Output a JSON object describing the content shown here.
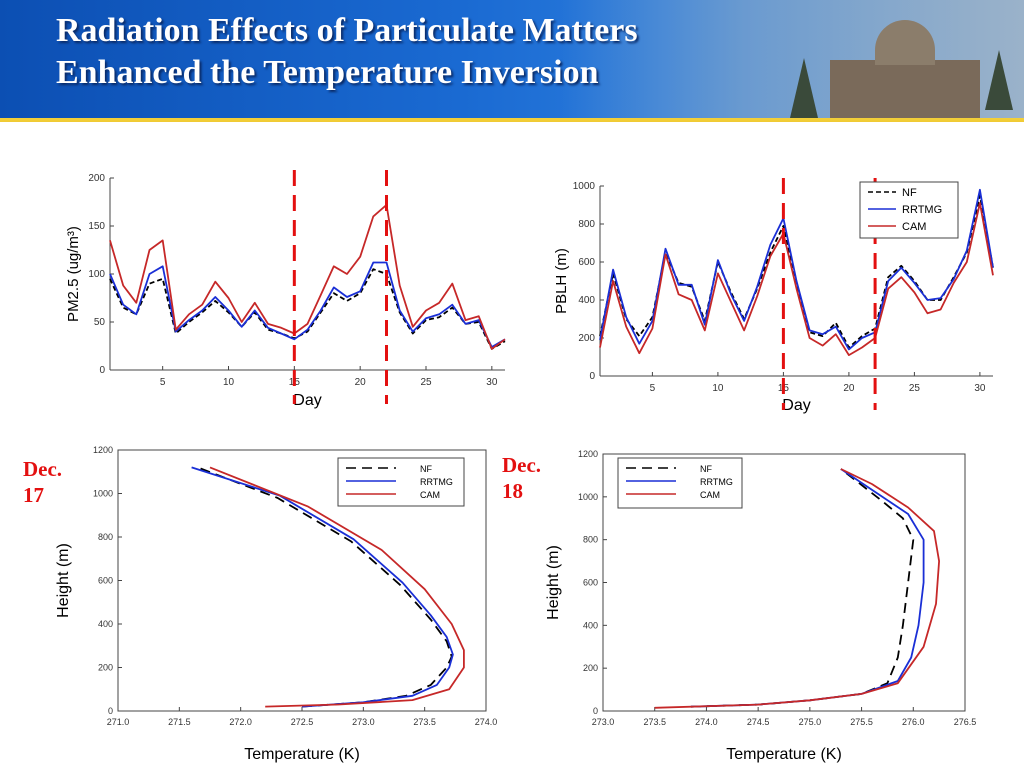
{
  "slide": {
    "title": "Radiation Effects of Particulate Matters\nEnhanced the Temperature Inversion",
    "label_dec17": "Dec.\n17",
    "label_dec18": "Dec.\n18"
  },
  "colors": {
    "NF": "#000000",
    "RRTMG": "#1a2fd6",
    "CAM": "#c62828",
    "marker": "#e31010",
    "title_bg": "#1a5fc7",
    "stripe": "#f2c51e"
  },
  "chart_data": [
    {
      "id": "pm25",
      "type": "line",
      "xlabel": "Day",
      "ylabel": "PM2.5 (ug/m³)",
      "xlim": [
        1,
        31
      ],
      "ylim": [
        0,
        200
      ],
      "xticks": [
        5,
        10,
        15,
        20,
        25,
        30
      ],
      "yticks": [
        0,
        50,
        100,
        150,
        200
      ],
      "markers": [
        15,
        22
      ],
      "x": [
        1,
        2,
        3,
        4,
        5,
        6,
        7,
        8,
        9,
        10,
        11,
        12,
        13,
        14,
        15,
        16,
        17,
        18,
        19,
        20,
        21,
        22,
        23,
        24,
        25,
        26,
        27,
        28,
        29,
        30,
        31
      ],
      "series": [
        {
          "name": "NF",
          "values": [
            95,
            65,
            58,
            90,
            95,
            38,
            50,
            60,
            72,
            60,
            45,
            60,
            42,
            38,
            33,
            40,
            60,
            80,
            72,
            80,
            105,
            100,
            60,
            38,
            52,
            55,
            65,
            48,
            50,
            22,
            30
          ]
        },
        {
          "name": "RRTMG",
          "values": [
            100,
            68,
            58,
            100,
            108,
            40,
            52,
            62,
            76,
            62,
            45,
            62,
            44,
            38,
            32,
            42,
            62,
            86,
            76,
            82,
            112,
            112,
            62,
            40,
            54,
            58,
            68,
            48,
            52,
            24,
            32
          ]
        },
        {
          "name": "CAM",
          "values": [
            135,
            88,
            70,
            125,
            135,
            42,
            58,
            68,
            92,
            75,
            50,
            70,
            48,
            44,
            38,
            48,
            78,
            108,
            100,
            118,
            160,
            172,
            88,
            45,
            62,
            70,
            90,
            52,
            56,
            22,
            32
          ]
        }
      ]
    },
    {
      "id": "pblh",
      "type": "line",
      "xlabel": "Day",
      "ylabel": "PBLH (m)",
      "legend": [
        "NF",
        "RRTMG",
        "CAM"
      ],
      "legend_position": "top-right",
      "xlim": [
        1,
        31
      ],
      "ylim": [
        0,
        1000
      ],
      "xticks": [
        5,
        10,
        15,
        20,
        25,
        30
      ],
      "yticks": [
        0,
        200,
        400,
        600,
        800,
        1000
      ],
      "markers": [
        15,
        22
      ],
      "x": [
        1,
        2,
        3,
        4,
        5,
        6,
        7,
        8,
        9,
        10,
        11,
        12,
        13,
        14,
        15,
        16,
        17,
        18,
        19,
        20,
        21,
        22,
        23,
        24,
        25,
        26,
        27,
        28,
        29,
        30,
        31
      ],
      "series": [
        {
          "name": "NF",
          "values": [
            210,
            540,
            300,
            210,
            310,
            650,
            490,
            470,
            290,
            600,
            440,
            300,
            460,
            650,
            790,
            480,
            230,
            210,
            280,
            150,
            210,
            250,
            520,
            580,
            500,
            400,
            400,
            520,
            650,
            950,
            570
          ]
        },
        {
          "name": "RRTMG",
          "values": [
            190,
            560,
            310,
            170,
            290,
            670,
            480,
            480,
            270,
            610,
            430,
            290,
            470,
            690,
            830,
            500,
            240,
            220,
            260,
            140,
            200,
            230,
            500,
            570,
            490,
            400,
            410,
            510,
            660,
            980,
            570
          ]
        },
        {
          "name": "CAM",
          "values": [
            150,
            500,
            260,
            120,
            250,
            640,
            430,
            400,
            240,
            540,
            390,
            240,
            420,
            630,
            750,
            460,
            200,
            160,
            220,
            110,
            150,
            200,
            460,
            520,
            440,
            330,
            350,
            490,
            600,
            910,
            530
          ]
        }
      ]
    },
    {
      "id": "dec17",
      "type": "line",
      "xlabel": "Temperature (K)",
      "ylabel": "Height (m)",
      "legend": [
        "NF",
        "RRTMG",
        "CAM"
      ],
      "legend_position": "top-right",
      "xlim": [
        271.0,
        274.0
      ],
      "ylim": [
        0,
        1200
      ],
      "xticks": [
        271.0,
        271.5,
        272.0,
        272.5,
        273.0,
        273.5,
        274.0
      ],
      "yticks": [
        0,
        200,
        400,
        600,
        800,
        1000,
        1200
      ],
      "series": [
        {
          "name": "NF",
          "points": [
            [
              272.5,
              20
            ],
            [
              273.0,
              40
            ],
            [
              273.35,
              70
            ],
            [
              273.55,
              120
            ],
            [
              273.68,
              200
            ],
            [
              273.72,
              250
            ],
            [
              273.68,
              320
            ],
            [
              273.55,
              420
            ],
            [
              273.3,
              580
            ],
            [
              272.9,
              780
            ],
            [
              272.3,
              980
            ],
            [
              271.65,
              1120
            ]
          ]
        },
        {
          "name": "RRTMG",
          "points": [
            [
              272.5,
              20
            ],
            [
              273.0,
              40
            ],
            [
              273.4,
              70
            ],
            [
              273.6,
              120
            ],
            [
              273.7,
              200
            ],
            [
              273.73,
              260
            ],
            [
              273.68,
              340
            ],
            [
              273.55,
              440
            ],
            [
              273.32,
              590
            ],
            [
              272.92,
              790
            ],
            [
              272.32,
              990
            ],
            [
              271.6,
              1120
            ]
          ]
        },
        {
          "name": "CAM",
          "points": [
            [
              272.2,
              20
            ],
            [
              272.8,
              30
            ],
            [
              273.4,
              50
            ],
            [
              273.7,
              100
            ],
            [
              273.82,
              200
            ],
            [
              273.82,
              280
            ],
            [
              273.72,
              400
            ],
            [
              273.5,
              560
            ],
            [
              273.15,
              740
            ],
            [
              272.55,
              940
            ],
            [
              271.75,
              1120
            ]
          ]
        }
      ]
    },
    {
      "id": "dec18",
      "type": "line",
      "xlabel": "Temperature (K)",
      "ylabel": "Height (m)",
      "legend": [
        "NF",
        "RRTMG",
        "CAM"
      ],
      "legend_position": "top-left",
      "xlim": [
        273.0,
        276.5
      ],
      "ylim": [
        0,
        1200
      ],
      "xticks": [
        273.0,
        273.5,
        274.0,
        274.5,
        275.0,
        275.5,
        276.0,
        276.5
      ],
      "yticks": [
        0,
        200,
        400,
        600,
        800,
        1000,
        1200
      ],
      "series": [
        {
          "name": "NF",
          "points": [
            [
              273.85,
              20
            ],
            [
              274.5,
              30
            ],
            [
              275.0,
              50
            ],
            [
              275.5,
              80
            ],
            [
              275.75,
              130
            ],
            [
              275.85,
              250
            ],
            [
              275.9,
              400
            ],
            [
              275.95,
              600
            ],
            [
              276.0,
              800
            ],
            [
              275.9,
              900
            ],
            [
              275.7,
              980
            ],
            [
              275.3,
              1130
            ]
          ]
        },
        {
          "name": "RRTMG",
          "points": [
            [
              273.85,
              20
            ],
            [
              274.5,
              30
            ],
            [
              275.0,
              50
            ],
            [
              275.5,
              80
            ],
            [
              275.85,
              140
            ],
            [
              275.98,
              250
            ],
            [
              276.05,
              400
            ],
            [
              276.1,
              600
            ],
            [
              276.1,
              800
            ],
            [
              275.95,
              920
            ],
            [
              275.7,
              1000
            ],
            [
              275.3,
              1130
            ]
          ]
        },
        {
          "name": "CAM",
          "points": [
            [
              273.5,
              15
            ],
            [
              274.5,
              30
            ],
            [
              275.0,
              50
            ],
            [
              275.5,
              80
            ],
            [
              275.85,
              130
            ],
            [
              276.1,
              300
            ],
            [
              276.22,
              500
            ],
            [
              276.25,
              700
            ],
            [
              276.2,
              840
            ],
            [
              275.95,
              950
            ],
            [
              275.6,
              1060
            ],
            [
              275.3,
              1130
            ]
          ]
        }
      ]
    }
  ]
}
